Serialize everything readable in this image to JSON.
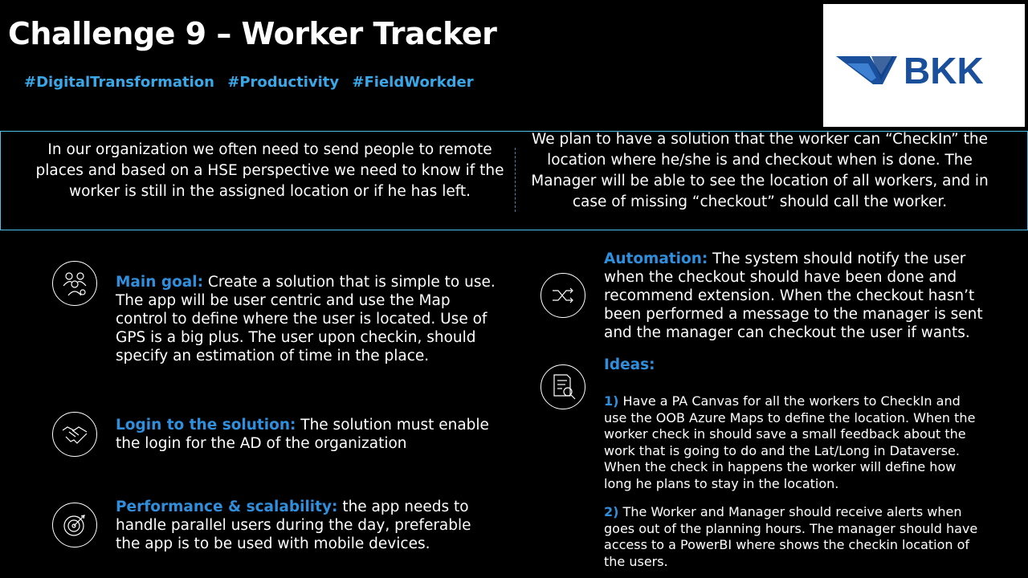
{
  "header": {
    "title": "Challenge 9 – Worker Tracker",
    "tags": [
      "#DigitalTransformation",
      "#Productivity",
      "#FieldWorkder"
    ]
  },
  "logo": {
    "text": "BKK",
    "brand_color": "#1a4f9c"
  },
  "banner": {
    "left_text": "In our organization we often need to send people to remote places and based on a HSE perspective we need to know if the worker is still in the assigned location or if he has left.",
    "right_text": "We plan to have a solution that the worker can “CheckIn” the location where he/she is and checkout when is done. The Manager will be able to see the location of all workers, and in case of missing “checkout” should call the worker."
  },
  "sections": {
    "main_goal": {
      "label": "Main goal:",
      "text": " Create a solution that is simple to use. The app will be user centric and use the Map control to define where the user is located. Use of GPS is a big plus. The user upon checkin, should specify an estimation of time in the place.",
      "icon": "team-icon"
    },
    "login": {
      "label": "Login to the solution:",
      "text": " The solution must enable the login for the AD of the organization",
      "icon": "handshake-icon"
    },
    "performance": {
      "label": "Performance & scalability:",
      "text": " the app needs to handle parallel users during the day, preferable the app is to be used with mobile devices.",
      "icon": "target-icon"
    },
    "automation": {
      "label": "Automation:",
      "text": " The system should notify the user when the checkout should have been done and recommend extension. When the checkout hasn’t been performed a message to the manager is sent and the manager can checkout the user if wants.",
      "icon": "shuffle-icon"
    },
    "ideas": {
      "label": "Ideas:",
      "icon": "document-search-icon",
      "items": [
        {
          "num": "1)",
          "text": " Have a PA Canvas for all the workers to CheckIn and use the OOB Azure Maps to define the location. When the worker check in should save a small feedback about the work that is going to do and the Lat/Long in Dataverse. When the check in happens the worker will define how long he plans to stay in the location."
        },
        {
          "num": "2)",
          "text": " The Worker and Manager should receive alerts when goes out of the planning hours. The manager should have access to a PowerBI where shows the checkin location of the users."
        }
      ]
    }
  },
  "colors": {
    "accent": "#2f8fdc",
    "tag": "#3aa8e8",
    "border": "#4cc2e8",
    "background": "#000000"
  }
}
